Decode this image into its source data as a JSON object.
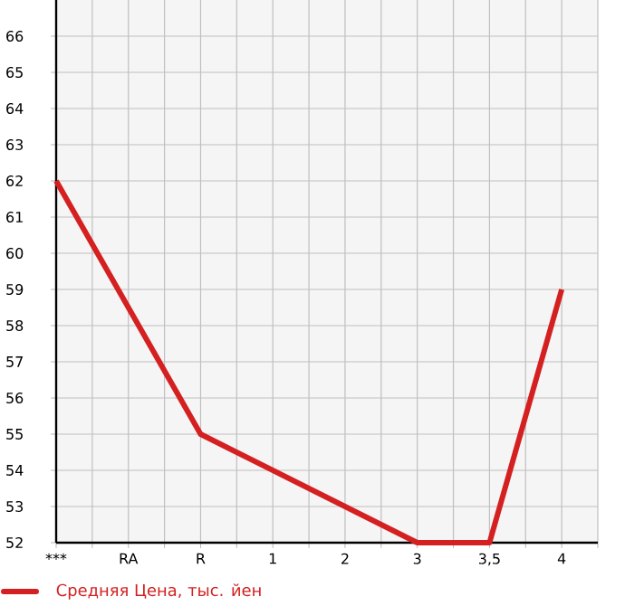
{
  "chart_data": {
    "type": "line",
    "categories": [
      "***",
      "RA",
      "R",
      "1",
      "2",
      "3",
      "3,5",
      "4"
    ],
    "series": [
      {
        "name": "Средняя Цена, тыс. йен",
        "color": "#d42020",
        "values": [
          62,
          null,
          55,
          null,
          null,
          52,
          52,
          59
        ]
      }
    ],
    "ylim": [
      52,
      67
    ],
    "yticks": [
      52,
      53,
      54,
      55,
      56,
      57,
      58,
      59,
      60,
      61,
      62,
      63,
      64,
      65,
      66
    ],
    "grid": true,
    "legend": "bottom",
    "marker": "none",
    "line_style": "solid"
  }
}
